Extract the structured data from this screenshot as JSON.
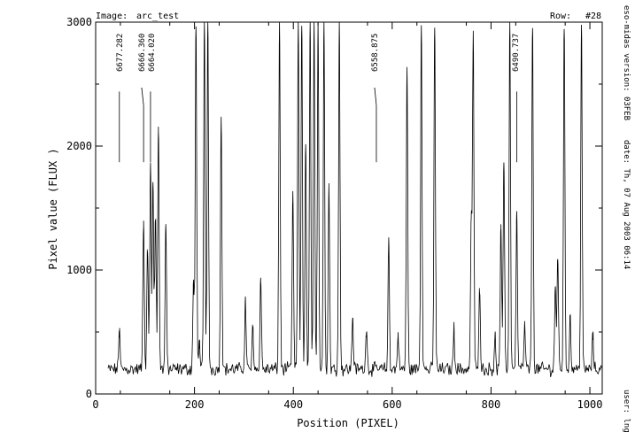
{
  "chart_data": {
    "type": "line",
    "image_label": "Image:",
    "image_name": "arc_test",
    "row_label": "Row:",
    "row_value": "#28",
    "xlabel": "Position (PIXEL)",
    "ylabel": "Pixel value (FLUX )",
    "xlim": [
      0,
      1025
    ],
    "ylim": [
      0,
      3000
    ],
    "x_ticks": [
      0,
      200,
      400,
      600,
      800,
      1000
    ],
    "y_ticks": [
      0,
      1000,
      2000,
      3000
    ],
    "baseline": 200,
    "peaks": [
      {
        "x": 48,
        "y": 510
      },
      {
        "x": 97,
        "y": 1390
      },
      {
        "x": 105,
        "y": 1180
      },
      {
        "x": 111,
        "y": 1850
      },
      {
        "x": 116,
        "y": 1690
      },
      {
        "x": 121,
        "y": 1450
      },
      {
        "x": 127,
        "y": 2150
      },
      {
        "x": 142,
        "y": 1370
      },
      {
        "x": 198,
        "y": 900
      },
      {
        "x": 203,
        "y": 3000
      },
      {
        "x": 210,
        "y": 420
      },
      {
        "x": 220,
        "y": 3000
      },
      {
        "x": 227,
        "y": 3000
      },
      {
        "x": 254,
        "y": 2250
      },
      {
        "x": 303,
        "y": 750
      },
      {
        "x": 318,
        "y": 540
      },
      {
        "x": 334,
        "y": 930
      },
      {
        "x": 372,
        "y": 3000
      },
      {
        "x": 399,
        "y": 1600
      },
      {
        "x": 410,
        "y": 3000
      },
      {
        "x": 417,
        "y": 3000
      },
      {
        "x": 425,
        "y": 2000
      },
      {
        "x": 434,
        "y": 3000
      },
      {
        "x": 442,
        "y": 3000
      },
      {
        "x": 450,
        "y": 3000
      },
      {
        "x": 462,
        "y": 3000
      },
      {
        "x": 472,
        "y": 1680
      },
      {
        "x": 493,
        "y": 3000
      },
      {
        "x": 520,
        "y": 620
      },
      {
        "x": 548,
        "y": 540
      },
      {
        "x": 593,
        "y": 1240
      },
      {
        "x": 612,
        "y": 470
      },
      {
        "x": 630,
        "y": 2630
      },
      {
        "x": 659,
        "y": 3000
      },
      {
        "x": 686,
        "y": 3000
      },
      {
        "x": 725,
        "y": 530
      },
      {
        "x": 760,
        "y": 1410
      },
      {
        "x": 764,
        "y": 2900
      },
      {
        "x": 777,
        "y": 870
      },
      {
        "x": 808,
        "y": 470
      },
      {
        "x": 820,
        "y": 1330
      },
      {
        "x": 826,
        "y": 1900
      },
      {
        "x": 838,
        "y": 3000
      },
      {
        "x": 852,
        "y": 1440
      },
      {
        "x": 868,
        "y": 560
      },
      {
        "x": 884,
        "y": 3000
      },
      {
        "x": 930,
        "y": 870
      },
      {
        "x": 935,
        "y": 1120
      },
      {
        "x": 948,
        "y": 3000
      },
      {
        "x": 960,
        "y": 640
      },
      {
        "x": 983,
        "y": 3000
      },
      {
        "x": 1006,
        "y": 470
      }
    ],
    "line_identifications": [
      {
        "label": "6677.282",
        "x": 48
      },
      {
        "label": "6666.360",
        "x": 97
      },
      {
        "label": "6664.020",
        "x": 111
      },
      {
        "label": "6558.875",
        "x": 568
      },
      {
        "label": "6490.737",
        "x": 852
      }
    ]
  },
  "side_info": {
    "version": "eso-midas version: 03FEB",
    "date": "date: Th, 07 Aug 2003 06:14",
    "user": "user: lng"
  }
}
